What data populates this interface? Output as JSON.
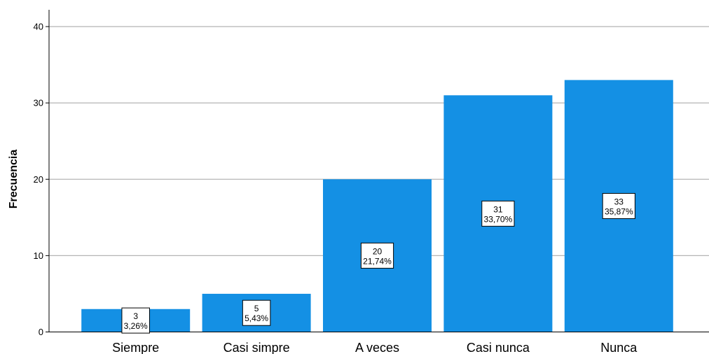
{
  "chart_data": {
    "type": "bar",
    "categories": [
      "Siempre",
      "Casi simpre",
      "A veces",
      "Casi nunca",
      "Nunca"
    ],
    "values": [
      3,
      5,
      20,
      31,
      33
    ],
    "percent_labels": [
      "3,26%",
      "5,43%",
      "21,74%",
      "33,70%",
      "35,87%"
    ],
    "title": "",
    "xlabel": "",
    "ylabel": "Frecuencia",
    "ylim": [
      0,
      40
    ],
    "yticks": [
      0,
      10,
      20,
      30,
      40
    ],
    "grid": true,
    "bar_color": "#1490e4",
    "grid_color": "#b4b4b4"
  }
}
